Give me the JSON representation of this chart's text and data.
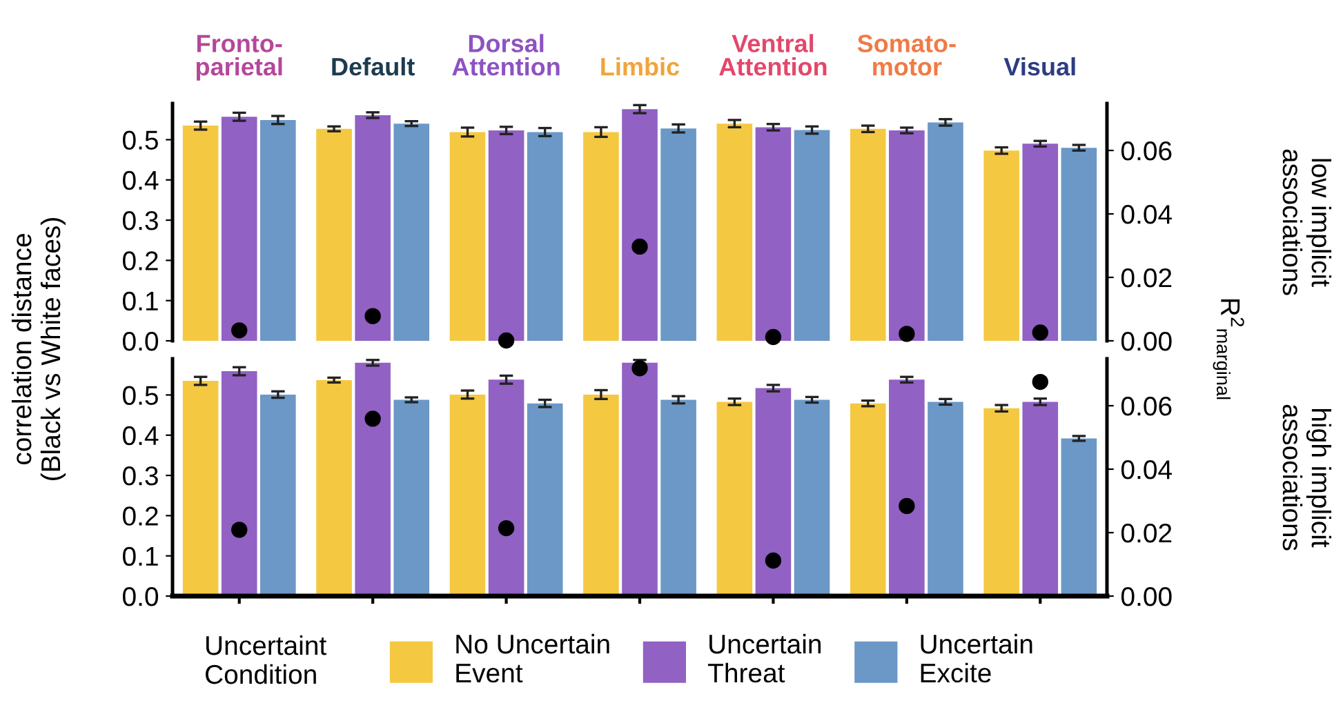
{
  "chart_data": [
    {
      "type": "bar",
      "categories": [
        "Fronto-\nparietal",
        "Default",
        "Dorsal\nAttention",
        "Limbic",
        "Ventral\nAttention",
        "Somato-\nmotor",
        "Visual"
      ],
      "ylabel": "correlation distance\n(Black vs White faces)",
      "y2label": "R$^{2}$$_{marginal}$",
      "annotations": [
        "low implicit\nassociations"
      ],
      "legend_title": "Uncertaint\nCondition",
      "legend": "bottom",
      "ylim": [
        0,
        0.59
      ],
      "yticks": [
        {
          "value": 0,
          "label": "0.0"
        },
        0.1,
        0.2,
        0.3,
        0.4,
        0.5
      ],
      "y2lim": [
        0,
        0.0748
      ],
      "y2ticks": [
        {
          "value": 0,
          "label": "0.00"
        },
        0.02,
        0.04,
        0.06
      ],
      "grid": false,
      "series": [
        {
          "name": "No Uncertain\nEvent",
          "color": "#f5c842",
          "values": [
            0.535,
            0.527,
            0.519,
            0.519,
            0.54,
            0.527,
            0.473
          ],
          "errors": [
            0.01,
            0.006,
            0.011,
            0.012,
            0.009,
            0.008,
            0.008
          ]
        },
        {
          "name": "Uncertain\nThreat",
          "color": "#9161c4",
          "values": [
            0.557,
            0.561,
            0.523,
            0.576,
            0.531,
            0.523,
            0.49
          ],
          "errors": [
            0.01,
            0.007,
            0.009,
            0.01,
            0.008,
            0.007,
            0.007
          ]
        },
        {
          "name": "Uncertain\nExcite",
          "color": "#6b98c6",
          "values": [
            0.549,
            0.54,
            0.519,
            0.528,
            0.524,
            0.543,
            0.48
          ],
          "errors": [
            0.01,
            0.006,
            0.01,
            0.01,
            0.009,
            0.008,
            0.007
          ]
        },
        {
          "type": "scatter",
          "axis": "y2",
          "color": "#000000",
          "values": [
            0.0033,
            0.0078,
            0.0001,
            0.0297,
            0.0012,
            0.0022,
            0.0026
          ]
        }
      ]
    },
    {
      "type": "bar",
      "categories": [
        null,
        null,
        null,
        null,
        null,
        null,
        null
      ],
      "annotations": [
        "high implicit\nassociations"
      ],
      "ylim": [
        0,
        0.59
      ],
      "yticks": [
        {
          "value": 0,
          "label": "0.0"
        },
        0.1,
        0.2,
        0.3,
        0.4,
        0.5
      ],
      "y2lim": [
        0,
        0.0748
      ],
      "y2ticks": [
        {
          "value": 0,
          "label": "0.00"
        },
        0.02,
        0.04,
        0.06
      ],
      "tick_labels": "y",
      "grid": false,
      "series": [
        {
          "color": "#f5c842",
          "values": [
            0.535,
            0.537,
            0.501,
            0.501,
            0.483,
            0.479,
            0.467
          ],
          "errors": [
            0.01,
            0.006,
            0.01,
            0.011,
            0.008,
            0.007,
            0.008
          ]
        },
        {
          "color": "#9161c4",
          "values": [
            0.559,
            0.58,
            0.538,
            0.58,
            0.517,
            0.538,
            0.483
          ],
          "errors": [
            0.01,
            0.007,
            0.01,
            0.007,
            0.008,
            0.007,
            0.008
          ]
        },
        {
          "color": "#6b98c6",
          "values": [
            0.501,
            0.488,
            0.479,
            0.488,
            0.488,
            0.483,
            0.392
          ],
          "errors": [
            0.008,
            0.006,
            0.009,
            0.009,
            0.007,
            0.007,
            0.006
          ]
        },
        {
          "type": "scatter",
          "axis": "y2",
          "color": "#000000",
          "values": [
            0.0209,
            0.0559,
            0.0214,
            0.0718,
            0.0112,
            0.0284,
            0.0675
          ]
        }
      ]
    }
  ]
}
